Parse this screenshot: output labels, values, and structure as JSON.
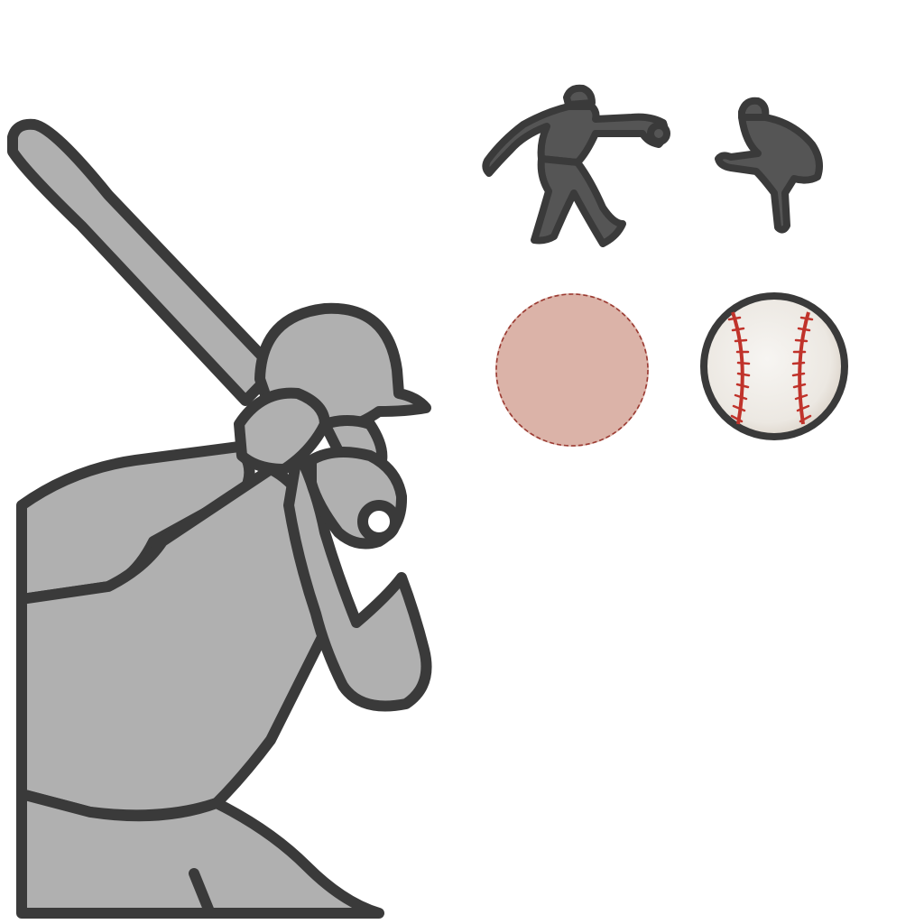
{
  "scene": {
    "background": "#ffffff",
    "outline_color": "#3a3a3a",
    "batter": {
      "icon": "batter-icon",
      "fill": "#b0b0b0"
    },
    "bat": {
      "icon": "bat-icon",
      "fill": "#b0b0b0"
    },
    "pitcher_windup": {
      "icon": "pitcher-windup-icon",
      "fill": "#555555"
    },
    "pitcher_crouch": {
      "icon": "pitcher-crouch-icon",
      "fill": "#555555"
    },
    "target_circle": {
      "icon": "target-circle-icon",
      "fill": "#dbb3a8",
      "dash_color": "#9b3a32"
    },
    "baseball": {
      "icon": "baseball-icon",
      "fill": "#f0eeea",
      "stitch_color": "#c0332b"
    }
  }
}
